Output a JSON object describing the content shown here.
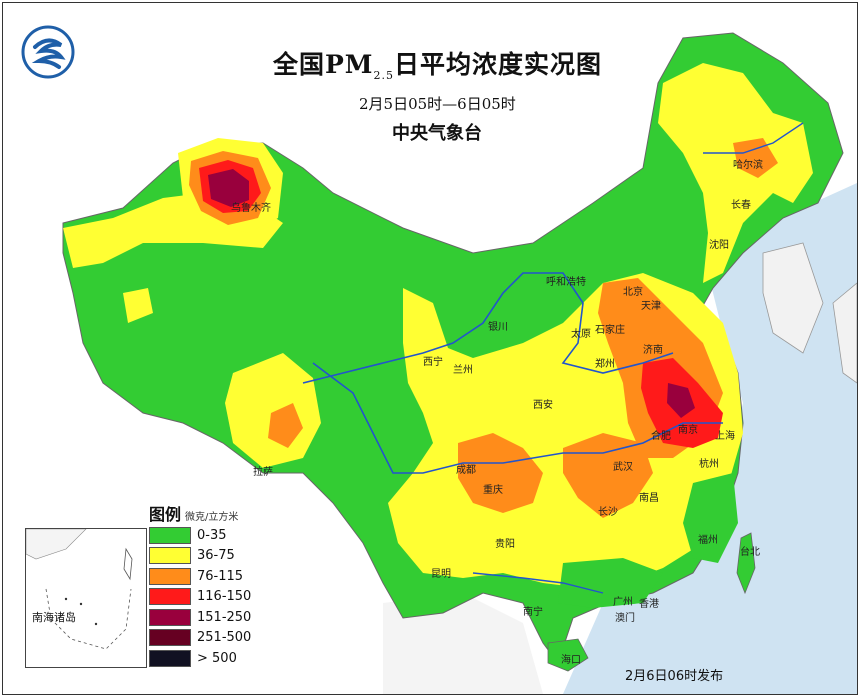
{
  "map": {
    "title_main": "全国PM",
    "title_sub": "2.5",
    "title_tail": "日平均浓度实况图",
    "subtitle": "2月5日05时—6日05时",
    "agency": "中央气象台",
    "release_time": "2月6日06时发布",
    "inset_label": "南海诸岛"
  },
  "legend": {
    "title": "图例",
    "unit": "微克/立方米",
    "items": [
      {
        "label": "0-35",
        "color": "#33cc33"
      },
      {
        "label": "36-75",
        "color": "#ffff33"
      },
      {
        "label": "76-115",
        "color": "#ff8c1a"
      },
      {
        "label": "116-150",
        "color": "#ff1a1a"
      },
      {
        "label": "151-250",
        "color": "#99003d"
      },
      {
        "label": "251-500",
        "color": "#660022"
      },
      {
        "label": "> 500",
        "color": "#111122"
      }
    ]
  },
  "cities": {
    "urumqi": "乌鲁木齐",
    "lhasa": "拉萨",
    "xining": "西宁",
    "lanzhou": "兰州",
    "yinchuan": "银川",
    "hohhot": "呼和浩特",
    "taiyuan": "太原",
    "beijing": "北京",
    "tianjin": "天津",
    "shijiazhuang": "石家庄",
    "jinan": "济南",
    "zhengzhou": "郑州",
    "xian": "西安",
    "chengdu": "成都",
    "chongqing": "重庆",
    "wuhan": "武汉",
    "hefei": "合肥",
    "nanjing": "南京",
    "shanghai": "上海",
    "hangzhou": "杭州",
    "nanchang": "南昌",
    "changsha": "长沙",
    "guiyang": "贵阳",
    "kunming": "昆明",
    "nanning": "南宁",
    "guangzhou": "广州",
    "hongkong": "香港",
    "macau": "澳门",
    "fuzhou": "福州",
    "taipei": "台北",
    "haikou": "海口",
    "harbin": "哈尔滨",
    "changchun": "长春",
    "shenyang": "沈阳"
  },
  "colors": {
    "sea": "#cfe3f2",
    "river": "#2255cc",
    "border": "#666666"
  }
}
